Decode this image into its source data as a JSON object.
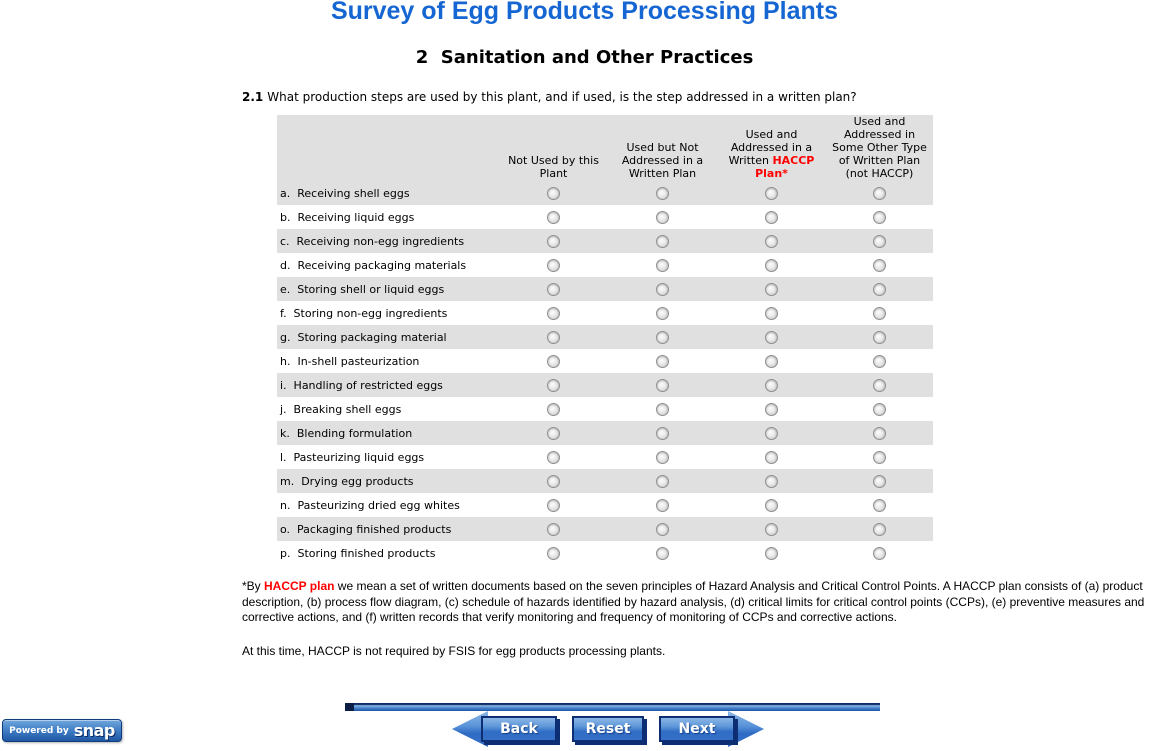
{
  "header": {
    "title": "Survey of Egg Products Processing Plants",
    "section": "2  Sanitation and Other Practices"
  },
  "question": {
    "number": "2.1",
    "text": "What production steps are used by this plant, and if used, is the step addressed in a written plan?"
  },
  "table": {
    "column_headers": [
      {
        "lines": [
          {
            "text": "Not Used by this"
          },
          {
            "text": "Plant"
          }
        ]
      },
      {
        "lines": [
          {
            "text": "Used but Not"
          },
          {
            "text": "Addressed in a"
          },
          {
            "text": "Written Plan"
          }
        ]
      },
      {
        "lines": [
          {
            "text": "Used and"
          },
          {
            "text": "Addressed in a"
          },
          {
            "text": "Written ",
            "red": "HACCP"
          },
          {
            "red": "Plan*"
          }
        ]
      },
      {
        "lines": [
          {
            "text": "Used and"
          },
          {
            "text": "Addressed in"
          },
          {
            "text": "Some Other Type"
          },
          {
            "text": "of Written Plan"
          },
          {
            "text": "(not HACCP)"
          }
        ]
      }
    ],
    "rows": [
      {
        "letter": "a.",
        "label": "Receiving shell eggs"
      },
      {
        "letter": "b.",
        "label": "Receiving liquid eggs"
      },
      {
        "letter": "c.",
        "label": "Receiving non-egg ingredients"
      },
      {
        "letter": "d.",
        "label": "Receiving packaging materials"
      },
      {
        "letter": "e.",
        "label": "Storing shell or liquid eggs"
      },
      {
        "letter": "f.",
        "label": "Storing non-egg ingredients"
      },
      {
        "letter": "g.",
        "label": "Storing packaging material"
      },
      {
        "letter": "h.",
        "label": "In-shell pasteurization"
      },
      {
        "letter": "i.",
        "label": "Handling of restricted eggs"
      },
      {
        "letter": "j.",
        "label": "Breaking shell eggs"
      },
      {
        "letter": "k.",
        "label": "Blending formulation"
      },
      {
        "letter": "l.",
        "label": "Pasteurizing liquid eggs"
      },
      {
        "letter": "m.",
        "label": "Drying egg products"
      },
      {
        "letter": "n.",
        "label": "Pasteurizing dried egg whites"
      },
      {
        "letter": "o.",
        "label": "Packaging finished products"
      },
      {
        "letter": "p.",
        "label": "Storing finished products"
      }
    ],
    "radio_state": "all unchecked"
  },
  "footnote": {
    "prefix": "*By ",
    "highlight": "HACCP plan",
    "rest": " we mean a set of written documents based on the seven principles of Hazard Analysis and Critical Control Points. A HACCP plan consists of (a) product description, (b) process flow diagram, (c) schedule of hazards identified by hazard analysis, (d) critical limits for critical control points (CCPs), (e) preventive measures and corrective actions, and (f) written records that verify monitoring and frequency of monitoring of CCPs and corrective actions."
  },
  "note": "At this time, HACCP is not required by FSIS for egg products processing plants.",
  "nav": {
    "back": "Back",
    "reset": "Reset",
    "next": "Next"
  },
  "branding": {
    "powered_by": "Powered by",
    "brand": "snap"
  },
  "colors": {
    "title_blue": "#1566D2",
    "accent_red": "#FF0000",
    "row_gray": "#E0E0E0",
    "button_blue": "#2F6CC4",
    "navy_border": "#0D2E73"
  }
}
